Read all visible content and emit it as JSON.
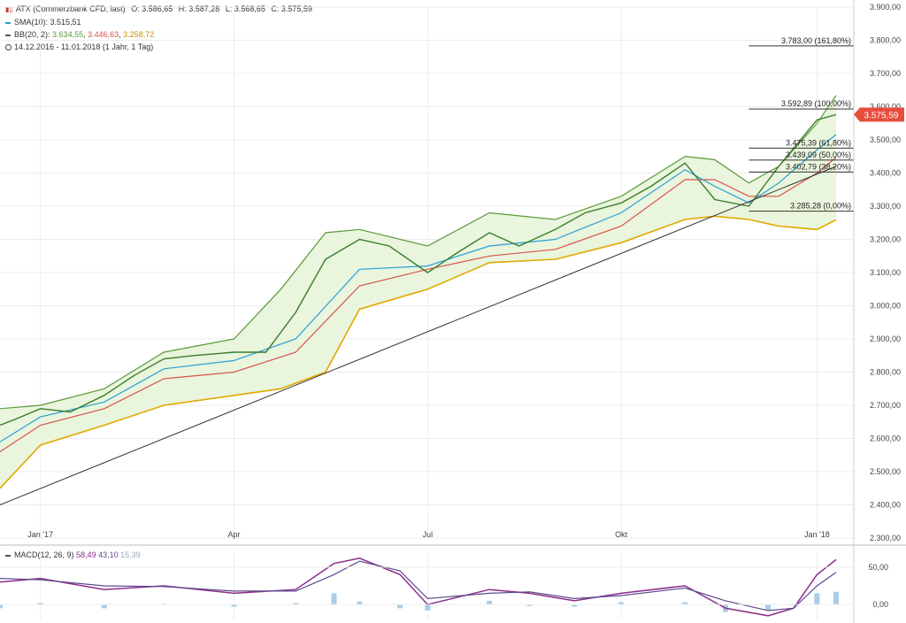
{
  "legend": {
    "ticker_icon": "chart-icon",
    "instrument": "ATX (Commerzbank CFD, last)",
    "ohlc": {
      "o": "O: 3.586,65",
      "h": "H: 3.587,28",
      "l": "L: 3.568,65",
      "c": "C: 3.575,59"
    },
    "sma": {
      "label": "SMA(10)",
      "value": "3.515,51",
      "color": "#2a9fd6"
    },
    "bb": {
      "label": "BB(20, 2)",
      "v1": "3.634,55",
      "v2": "3.446,63",
      "v3": "3.258,72",
      "color_mid": "#d9534f",
      "color_lower": "#e0a800"
    },
    "period": "14.12.2016 - 11.01.2018 (1 Jahr, 1 Tag)"
  },
  "macd_legend": {
    "label": "MACD(12, 26, 9)",
    "v1": "58,49",
    "v2": "43,10",
    "v3": "15,39"
  },
  "last_price_badge": "3.575,59",
  "colors": {
    "candle": "#3a7d2c",
    "band_fill": "#e9f5dc",
    "band_upper": "#5a9a3a",
    "sma": "#2a9fd6",
    "bb_mid": "#d9534f",
    "bb_lower": "#e0a800",
    "badge": "#e74c3c",
    "macd_line": "#8b2d8b",
    "signal_line": "#5c4a8a",
    "histogram": "#a9cde6"
  },
  "chart_data": {
    "type": "line",
    "y_ticks": [
      "3.900,00",
      "3.800,00",
      "3.700,00",
      "3.600,00",
      "3.500,00",
      "3.400,00",
      "3.300,00",
      "3.200,00",
      "3.100,00",
      "3.000,00",
      "2.900,00",
      "2.800,00",
      "2.700,00",
      "2.600,00",
      "2.500,00",
      "2.400,00",
      "2.300,00"
    ],
    "ylim": [
      2300,
      3900
    ],
    "x_ticks": [
      {
        "label": "Jan '17",
        "date": "2017-01-02"
      },
      {
        "label": "Apr",
        "date": "2017-04-03"
      },
      {
        "label": "Jul",
        "date": "2017-07-03"
      },
      {
        "label": "Okt",
        "date": "2017-10-02"
      },
      {
        "label": "Jan '18",
        "date": "2018-01-02"
      }
    ],
    "xlim": [
      "2016-12-14",
      "2018-01-11"
    ],
    "series": [
      {
        "key": "close",
        "x": [
          "2016-12-14",
          "2016-12-22",
          "2017-01-02",
          "2017-01-16",
          "2017-02-01",
          "2017-02-15",
          "2017-03-01",
          "2017-03-15",
          "2017-04-03",
          "2017-04-18",
          "2017-05-02",
          "2017-05-16",
          "2017-06-01",
          "2017-06-15",
          "2017-07-03",
          "2017-07-17",
          "2017-08-01",
          "2017-08-15",
          "2017-09-01",
          "2017-09-15",
          "2017-10-02",
          "2017-10-16",
          "2017-11-01",
          "2017-11-15",
          "2017-12-01",
          "2017-12-15",
          "2018-01-02",
          "2018-01-11"
        ],
        "values": [
          2640,
          2660,
          2690,
          2680,
          2730,
          2790,
          2840,
          2850,
          2860,
          2860,
          2980,
          3140,
          3200,
          3180,
          3100,
          3160,
          3220,
          3180,
          3230,
          3280,
          3310,
          3360,
          3430,
          3320,
          3300,
          3420,
          3560,
          3576
        ]
      },
      {
        "key": "sma10",
        "x": [
          "2016-12-14",
          "2017-01-02",
          "2017-02-01",
          "2017-03-01",
          "2017-04-03",
          "2017-05-02",
          "2017-06-01",
          "2017-07-03",
          "2017-08-01",
          "2017-09-01",
          "2017-10-02",
          "2017-11-01",
          "2017-11-15",
          "2017-12-01",
          "2017-12-15",
          "2018-01-02",
          "2018-01-11"
        ],
        "values": [
          2590,
          2665,
          2710,
          2810,
          2835,
          2900,
          3110,
          3120,
          3180,
          3200,
          3280,
          3410,
          3360,
          3310,
          3370,
          3470,
          3516
        ]
      },
      {
        "key": "bb_upper",
        "x": [
          "2016-12-14",
          "2017-01-02",
          "2017-02-01",
          "2017-03-01",
          "2017-04-03",
          "2017-04-25",
          "2017-05-16",
          "2017-06-01",
          "2017-07-03",
          "2017-08-01",
          "2017-09-01",
          "2017-10-02",
          "2017-11-01",
          "2017-11-15",
          "2017-12-01",
          "2017-12-15",
          "2018-01-02",
          "2018-01-11"
        ],
        "values": [
          2690,
          2700,
          2750,
          2860,
          2900,
          3050,
          3220,
          3230,
          3180,
          3280,
          3260,
          3330,
          3450,
          3440,
          3370,
          3420,
          3550,
          3634
        ]
      },
      {
        "key": "bb_mid",
        "x": [
          "2016-12-14",
          "2017-01-02",
          "2017-02-01",
          "2017-03-01",
          "2017-04-03",
          "2017-05-02",
          "2017-06-01",
          "2017-07-03",
          "2017-08-01",
          "2017-09-01",
          "2017-10-02",
          "2017-11-01",
          "2017-11-15",
          "2017-12-01",
          "2017-12-15",
          "2018-01-02",
          "2018-01-11"
        ],
        "values": [
          2560,
          2640,
          2690,
          2780,
          2800,
          2860,
          3060,
          3110,
          3150,
          3170,
          3240,
          3380,
          3380,
          3330,
          3330,
          3400,
          3447
        ]
      },
      {
        "key": "bb_lower",
        "x": [
          "2016-12-14",
          "2017-01-02",
          "2017-02-01",
          "2017-03-01",
          "2017-04-03",
          "2017-04-25",
          "2017-05-16",
          "2017-06-01",
          "2017-07-03",
          "2017-08-01",
          "2017-09-01",
          "2017-10-02",
          "2017-11-01",
          "2017-11-15",
          "2017-12-01",
          "2017-12-15",
          "2018-01-02",
          "2018-01-11"
        ],
        "values": [
          2450,
          2580,
          2640,
          2700,
          2730,
          2750,
          2800,
          2990,
          3050,
          3130,
          3140,
          3190,
          3260,
          3270,
          3260,
          3240,
          3230,
          3259
        ]
      },
      {
        "key": "trendline",
        "x": [
          "2016-12-14",
          "2018-01-11"
        ],
        "values": [
          2400,
          3420
        ]
      }
    ],
    "fib_levels": [
      {
        "label": "3.783,00 (161,80%)",
        "value": 3783
      },
      {
        "label": "3.592,89 (100,00%)",
        "value": 3593
      },
      {
        "label": "3.475,39 (61,80%)",
        "value": 3475
      },
      {
        "label": "3.439,09 (50,00%)",
        "value": 3439
      },
      {
        "label": "3.402,79 (38,20%)",
        "value": 3403
      },
      {
        "label": "3.285,28 (0,00%)",
        "value": 3285
      }
    ],
    "macd": {
      "y_ticks": [
        "50,00",
        "0,00"
      ],
      "ylim": [
        -20,
        70
      ],
      "x": [
        "2016-12-14",
        "2017-01-02",
        "2017-02-01",
        "2017-03-01",
        "2017-04-03",
        "2017-05-02",
        "2017-05-20",
        "2017-06-01",
        "2017-06-20",
        "2017-07-03",
        "2017-08-01",
        "2017-08-20",
        "2017-09-10",
        "2017-10-02",
        "2017-11-01",
        "2017-11-20",
        "2017-12-10",
        "2017-12-22",
        "2018-01-02",
        "2018-01-11"
      ],
      "macd": [
        30,
        35,
        20,
        25,
        15,
        20,
        55,
        62,
        40,
        0,
        20,
        15,
        5,
        15,
        25,
        -5,
        -15,
        -5,
        40,
        60
      ],
      "signal": [
        35,
        33,
        25,
        24,
        18,
        18,
        40,
        58,
        45,
        8,
        15,
        17,
        8,
        12,
        22,
        5,
        -8,
        -5,
        25,
        43
      ]
    }
  }
}
